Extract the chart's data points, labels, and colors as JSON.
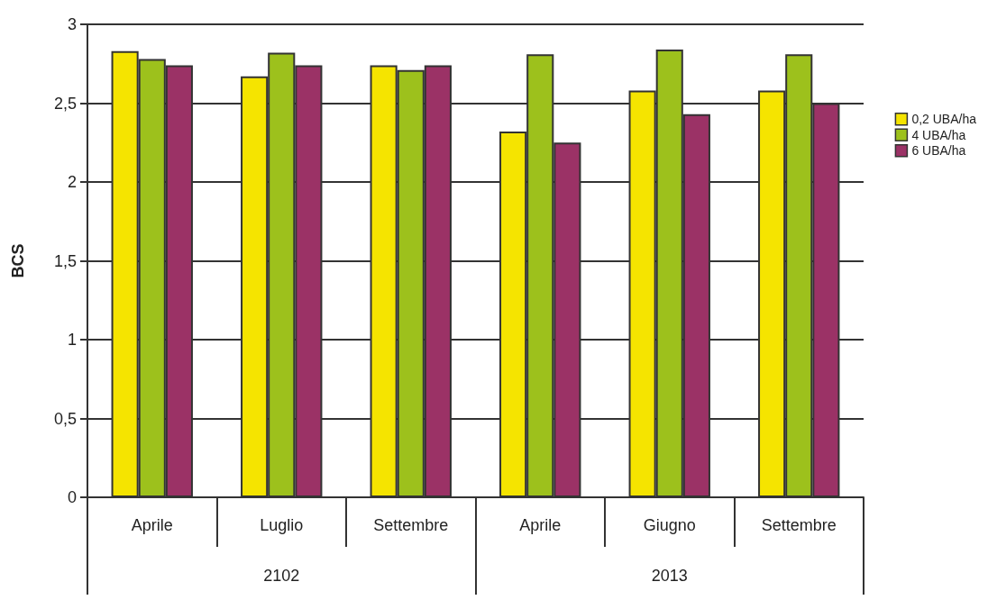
{
  "chart_data": {
    "type": "bar",
    "ylabel": "BCS",
    "categories": [
      "Aprile",
      "Luglio",
      "Settembre",
      "Aprile",
      "Giugno",
      "Settembre"
    ],
    "series": [
      {
        "name": "0,2 UBA/ha",
        "color": "#f5e400",
        "values": [
          2.83,
          2.67,
          2.74,
          2.32,
          2.58,
          2.58
        ]
      },
      {
        "name": "4 UBA/ha",
        "color": "#9dc11c",
        "values": [
          2.78,
          2.82,
          2.71,
          2.81,
          2.84,
          2.81
        ]
      },
      {
        "name": "6 UBA/ha",
        "color": "#9b3266",
        "values": [
          2.74,
          2.74,
          2.74,
          2.25,
          2.43,
          2.5
        ]
      }
    ],
    "ylim": [
      0,
      3
    ],
    "yticks": [
      0,
      {
        "value": 0.5,
        "label": "0,5"
      },
      1,
      {
        "value": 1.5,
        "label": "1,5"
      },
      2,
      {
        "value": 2.5,
        "label": "2,5"
      },
      3
    ],
    "annotations": [
      "2102",
      "2013"
    ],
    "grid": "y",
    "legend": "right"
  }
}
